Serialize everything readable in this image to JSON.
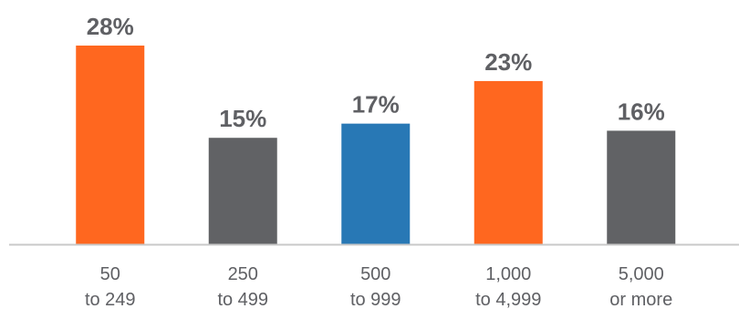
{
  "chart_data": {
    "type": "bar",
    "categories": [
      [
        "50",
        "to 249"
      ],
      [
        "250",
        "to 499"
      ],
      [
        "500",
        "to 999"
      ],
      [
        "1,000",
        "to 4,999"
      ],
      [
        "5,000",
        "or more"
      ]
    ],
    "values": [
      28,
      15,
      17,
      23,
      16
    ],
    "value_labels": [
      "28%",
      "15%",
      "17%",
      "23%",
      "16%"
    ],
    "bar_colors": [
      "#ff671f",
      "#616265",
      "#2878b5",
      "#ff671f",
      "#616265"
    ],
    "ylim": [
      0,
      28
    ],
    "grid": false,
    "axis_color": "#c8c8c8",
    "text_color": "#5f6064"
  }
}
